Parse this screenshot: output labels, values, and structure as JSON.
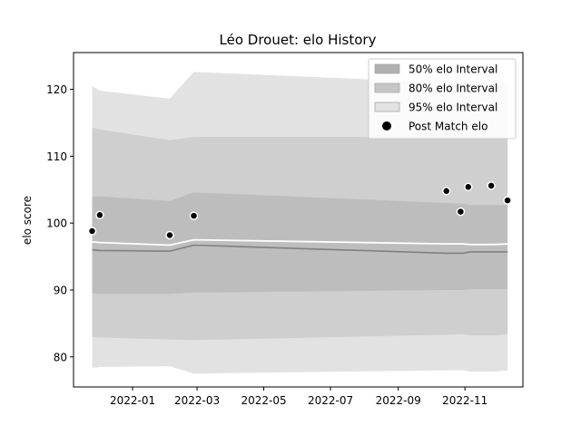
{
  "chart_data": {
    "type": "area",
    "title": "Léo Drouet: elo History",
    "xlabel": "",
    "ylabel": "elo score",
    "xlim": [
      "2021-11-08",
      "2022-12-24"
    ],
    "ylim": [
      75.5,
      125.5
    ],
    "x_ticks": [
      "2022-01-01",
      "2022-03-01",
      "2022-05-01",
      "2022-07-01",
      "2022-09-01",
      "2022-11-01"
    ],
    "x_tick_labels": [
      "2022-01",
      "2022-03",
      "2022-05",
      "2022-07",
      "2022-09",
      "2022-11"
    ],
    "y_ticks": [
      80,
      90,
      100,
      110,
      120
    ],
    "y_tick_labels": [
      "80",
      "90",
      "100",
      "110",
      "120"
    ],
    "legend_position": "top-right",
    "legend": [
      {
        "label": "50% elo Interval",
        "color": "#b0b0b0"
      },
      {
        "label": "80% elo Interval",
        "color": "#c6c6c6"
      },
      {
        "label": "95% elo Interval",
        "color": "#e2e2e2"
      },
      {
        "label": "Post Match elo",
        "color": "#000000"
      }
    ],
    "band_x": [
      "2021-11-25",
      "2021-12-02",
      "2022-02-04",
      "2022-02-26",
      "2022-10-15",
      "2022-10-30",
      "2022-11-06",
      "2022-11-28",
      "2022-12-10"
    ],
    "bands": {
      "ci95": {
        "lower": [
          78.3,
          78.5,
          78.6,
          77.5,
          78.0,
          78.0,
          77.8,
          77.8,
          78.0
        ],
        "upper": [
          120.5,
          119.8,
          118.6,
          122.6,
          121.0,
          121.0,
          121.0,
          121.0,
          121.0
        ]
      },
      "ci80": {
        "lower": [
          83.0,
          82.9,
          82.6,
          82.5,
          83.3,
          83.4,
          83.2,
          83.2,
          83.4
        ],
        "upper": [
          114.3,
          114.0,
          112.4,
          112.9,
          112.9,
          112.9,
          112.9,
          112.9,
          112.9
        ]
      },
      "ci50": {
        "lower": [
          89.5,
          89.4,
          89.4,
          89.6,
          90.0,
          90.0,
          90.1,
          90.1,
          90.1
        ],
        "upper": [
          104.0,
          104.0,
          103.3,
          104.6,
          103.0,
          102.9,
          102.7,
          102.7,
          102.7
        ]
      }
    },
    "mean_line": [
      96.0,
      95.9,
      95.8,
      96.7,
      95.5,
      95.5,
      95.7,
      95.7,
      95.7
    ],
    "upper_line": [
      97.2,
      97.1,
      96.7,
      97.5,
      96.9,
      96.9,
      96.8,
      96.8,
      96.9
    ],
    "series": [
      {
        "name": "Post Match elo",
        "x": [
          "2021-11-25",
          "2021-12-02",
          "2022-02-04",
          "2022-02-26",
          "2022-10-15",
          "2022-10-28",
          "2022-11-04",
          "2022-11-25",
          "2022-12-10"
        ],
        "y": [
          98.8,
          101.2,
          98.2,
          101.1,
          104.8,
          101.7,
          105.4,
          105.6,
          103.4
        ]
      }
    ]
  }
}
